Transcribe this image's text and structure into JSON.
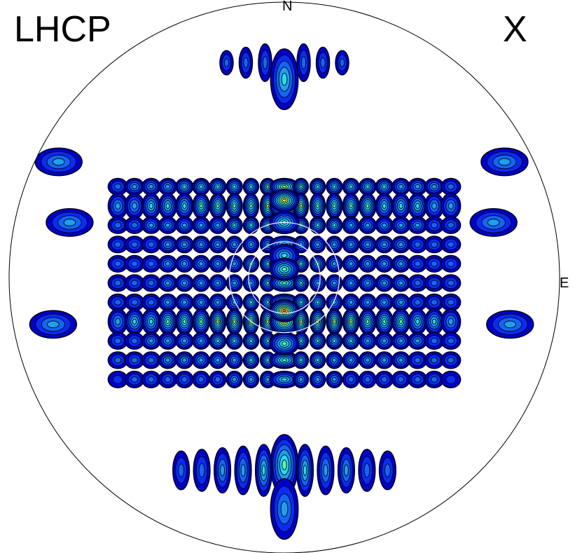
{
  "title_left": "LHCP",
  "title_right": "X",
  "direction_labels": {
    "north": "N",
    "east": "E"
  },
  "chart_data": {
    "type": "heatmap",
    "projection": "polar-disk",
    "title": "",
    "xlabel": "",
    "ylabel": "",
    "grid": false,
    "legend": "none",
    "color_levels": [
      "#0000c8",
      "#0a2cf0",
      "#1466f0",
      "#1ea0ec",
      "#26dcec",
      "#66f0a8",
      "#b8f060",
      "#f8f820",
      "#f86a1a"
    ],
    "peaks": [
      {
        "x": 0.0,
        "y": 0.28,
        "value": 0.83
      },
      {
        "x": 0.0,
        "y": -0.12,
        "value": 0.95
      },
      {
        "x": 0.0,
        "y": 0.08,
        "value": 0.55
      },
      {
        "x": 0.0,
        "y": 0.2,
        "value": 0.6
      },
      {
        "x": 0.0,
        "y": 0.03,
        "value": 0.58
      },
      {
        "x": 0.0,
        "y": -0.24,
        "value": 0.6
      },
      {
        "x": 0.0,
        "y": 0.72,
        "value": 0.45
      },
      {
        "x": 0.0,
        "y": -0.68,
        "value": 0.6
      },
      {
        "x": 0.0,
        "y": -0.84,
        "value": 0.4
      }
    ],
    "overlay_circles": [
      0.2,
      0.13
    ]
  }
}
